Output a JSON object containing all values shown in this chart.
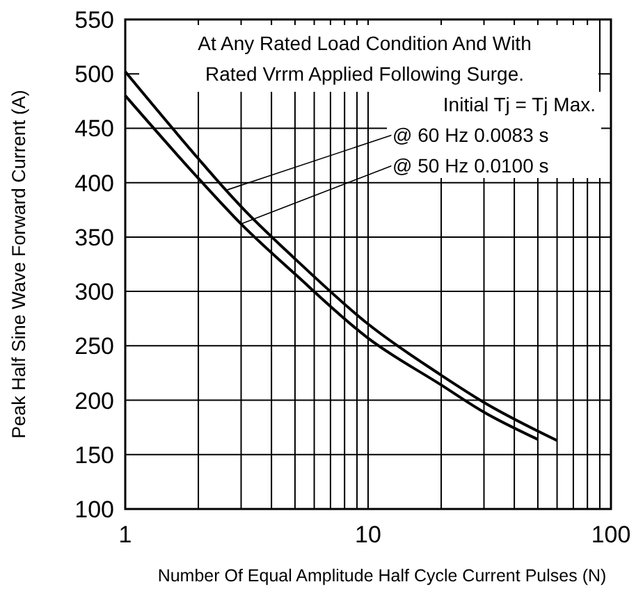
{
  "chart_data": {
    "type": "line",
    "xlabel": "Number Of Equal Amplitude Half Cycle Current Pulses (N)",
    "ylabel": "Peak Half Sine Wave Forward Current (A)",
    "log": "x",
    "xlim": [
      1,
      100
    ],
    "ylim": [
      100,
      550
    ],
    "xticks": [
      1,
      {
        "value": 2,
        "label": null
      },
      {
        "value": 3,
        "label": null
      },
      {
        "value": 4,
        "label": null
      },
      {
        "value": 5,
        "label": null
      },
      {
        "value": 6,
        "label": null
      },
      {
        "value": 7,
        "label": null
      },
      {
        "value": 8,
        "label": null
      },
      {
        "value": 9,
        "label": null
      },
      10,
      {
        "value": 20,
        "label": null
      },
      {
        "value": 30,
        "label": null
      },
      {
        "value": 40,
        "label": null
      },
      {
        "value": 50,
        "label": null
      },
      {
        "value": 60,
        "label": null
      },
      {
        "value": 70,
        "label": null
      },
      {
        "value": 80,
        "label": null
      },
      {
        "value": 90,
        "label": null
      },
      100
    ],
    "yticks": [
      100,
      150,
      200,
      250,
      300,
      350,
      400,
      450,
      500,
      550
    ],
    "grid": true,
    "line_style": "solid",
    "marker": "none",
    "series": [
      {
        "color": "#000000",
        "x": [
          1,
          2,
          2.6,
          3,
          5,
          10,
          20,
          30,
          60
        ],
        "values": [
          502,
          422,
          393,
          378,
          330,
          270,
          223,
          198,
          163
        ]
      },
      {
        "color": "#000000",
        "x": [
          1,
          2,
          3,
          5,
          10,
          20,
          30,
          50
        ],
        "values": [
          480,
          404,
          362,
          316,
          257,
          214,
          189,
          164
        ]
      }
    ],
    "annotations": [
      "At Any Rated Load Condition And With",
      "Rated Vrrm Applied Following Surge.",
      "Initial Tj = Tj Max.",
      {
        "text": "@ 60 Hz 0.0083 s",
        "x": 2.6,
        "y": 393
      },
      {
        "text": "@ 50 Hz 0.0100 s",
        "x": 3,
        "y": 362
      }
    ]
  }
}
